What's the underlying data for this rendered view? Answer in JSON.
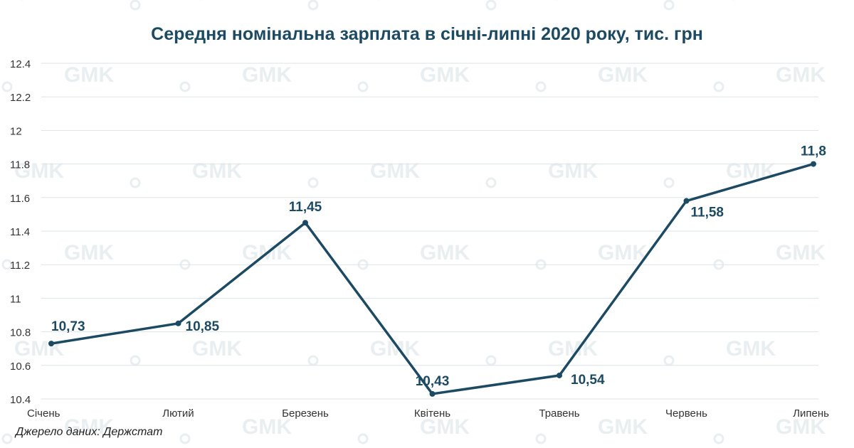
{
  "chart_data": {
    "type": "line",
    "title": "Середня номінальна зарплата в січні-липні 2020 року, тис. грн",
    "categories": [
      "Січень",
      "Лютий",
      "Березень",
      "Квітень",
      "Травень",
      "Червень",
      "Липень"
    ],
    "series": [
      {
        "values": [
          10.73,
          10.85,
          11.45,
          10.43,
          10.54,
          11.58,
          11.8
        ],
        "data_labels": [
          "10,73",
          "10,85",
          "11,45",
          "10,43",
          "10,54",
          "11,58",
          "11,8"
        ]
      }
    ],
    "ylim": [
      10.4,
      12.4
    ],
    "yticks": [
      "10.4",
      "10.6",
      "10.8",
      "11",
      "11.2",
      "11.4",
      "11.6",
      "11.8",
      "12",
      "12.2",
      "12.4"
    ],
    "grid": true,
    "line_color": "#1d4a63",
    "grid_color": "#dde3e7"
  },
  "source_note": "Джерело даних: Держстат",
  "watermark_text": "GMK"
}
